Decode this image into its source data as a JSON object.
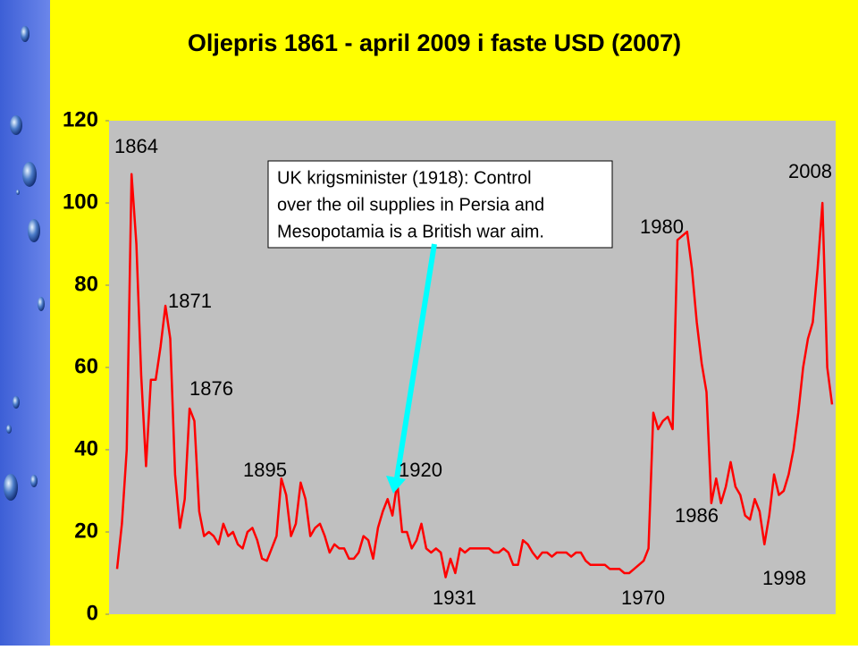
{
  "chart_data": {
    "type": "line",
    "title": "Oljepris 1861 - april 2009 i faste USD (2007)",
    "x": [
      1861,
      1862,
      1863,
      1864,
      1865,
      1866,
      1867,
      1868,
      1869,
      1870,
      1871,
      1872,
      1873,
      1874,
      1875,
      1876,
      1877,
      1878,
      1879,
      1880,
      1881,
      1882,
      1883,
      1884,
      1885,
      1886,
      1887,
      1888,
      1889,
      1890,
      1891,
      1892,
      1893,
      1894,
      1895,
      1896,
      1897,
      1898,
      1899,
      1900,
      1901,
      1902,
      1903,
      1904,
      1905,
      1906,
      1907,
      1908,
      1909,
      1910,
      1911,
      1912,
      1913,
      1914,
      1915,
      1916,
      1917,
      1918,
      1919,
      1920,
      1921,
      1922,
      1923,
      1924,
      1925,
      1926,
      1927,
      1928,
      1929,
      1930,
      1931,
      1932,
      1933,
      1934,
      1935,
      1936,
      1937,
      1938,
      1939,
      1940,
      1941,
      1942,
      1943,
      1944,
      1945,
      1946,
      1947,
      1948,
      1949,
      1950,
      1951,
      1952,
      1953,
      1954,
      1955,
      1956,
      1957,
      1958,
      1959,
      1960,
      1961,
      1962,
      1963,
      1964,
      1965,
      1966,
      1967,
      1968,
      1969,
      1970,
      1971,
      1972,
      1973,
      1974,
      1975,
      1976,
      1977,
      1978,
      1979,
      1980,
      1981,
      1982,
      1983,
      1984,
      1985,
      1986,
      1987,
      1988,
      1989,
      1990,
      1991,
      1992,
      1993,
      1994,
      1995,
      1996,
      1997,
      1998,
      1999,
      2000,
      2001,
      2002,
      2003,
      2004,
      2005,
      2006,
      2007,
      2008,
      2009
    ],
    "values": [
      11,
      22,
      40,
      107,
      90,
      58,
      36,
      57,
      57,
      65,
      75,
      67,
      34,
      21,
      28,
      50,
      47,
      25,
      19,
      20,
      19,
      17,
      22,
      19,
      20,
      17,
      16,
      20,
      21,
      18,
      13.5,
      13,
      16,
      19,
      33,
      29,
      19,
      22,
      32,
      28,
      19,
      21,
      22,
      19,
      15,
      17,
      16,
      16,
      13.5,
      13.5,
      15,
      19,
      18,
      13.5,
      21,
      25,
      28,
      24,
      32,
      20,
      20,
      16,
      18,
      22,
      16,
      15,
      16,
      15,
      9,
      13.5,
      10,
      16,
      15,
      16,
      16,
      16,
      16,
      16,
      15,
      15,
      16,
      15,
      12,
      12,
      18,
      17,
      15,
      13.5,
      15,
      15,
      14,
      15,
      15,
      15,
      14,
      15,
      15,
      13,
      12,
      12,
      12,
      12,
      11,
      11,
      11,
      10,
      10,
      11,
      12,
      13,
      16,
      49,
      45,
      47,
      48,
      45,
      91,
      92,
      93,
      84,
      71,
      61,
      54,
      27,
      33,
      27,
      31,
      37,
      31,
      29,
      24,
      23,
      28,
      25,
      17,
      24,
      34,
      29,
      30,
      34,
      40,
      49,
      60,
      67,
      71,
      84,
      100,
      60,
      51
    ],
    "color": "#ff0000",
    "xlim": [
      1861,
      2009
    ],
    "ylim": [
      0,
      120
    ],
    "yticks": [
      0,
      20,
      40,
      60,
      80,
      100,
      120
    ],
    "annotations": [
      "1864",
      "1871",
      "1876",
      "1895",
      "1920",
      "1931",
      "1970",
      "1980",
      "1986",
      "1998",
      "2008"
    ],
    "callout": [
      "UK krigsminister (1918): Control",
      "over the oil supplies in Persia and",
      "Mesopotamia is a British war aim."
    ]
  }
}
